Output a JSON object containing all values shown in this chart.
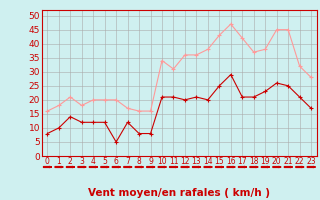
{
  "x": [
    0,
    1,
    2,
    3,
    4,
    5,
    6,
    7,
    8,
    9,
    10,
    11,
    12,
    13,
    14,
    15,
    16,
    17,
    18,
    19,
    20,
    21,
    22,
    23
  ],
  "wind_avg": [
    8,
    10,
    14,
    12,
    12,
    12,
    5,
    12,
    8,
    8,
    21,
    21,
    20,
    21,
    20,
    25,
    29,
    21,
    21,
    23,
    26,
    25,
    21,
    17
  ],
  "wind_gust": [
    16,
    18,
    21,
    18,
    20,
    20,
    20,
    17,
    16,
    16,
    34,
    31,
    36,
    36,
    38,
    43,
    47,
    42,
    37,
    38,
    45,
    45,
    32,
    28
  ],
  "avg_color": "#cc0000",
  "gust_color": "#ff9999",
  "bg_color": "#cff0f0",
  "grid_color": "#aaaaaa",
  "xlabel": "Vent moyen/en rafales ( km/h )",
  "xlabel_color": "#cc0000",
  "yticks": [
    0,
    5,
    10,
    15,
    20,
    25,
    30,
    35,
    40,
    45,
    50
  ],
  "ylim": [
    0,
    52
  ],
  "xlim": [
    -0.5,
    23.5
  ],
  "xtick_fontsize": 5.5,
  "ytick_fontsize": 6.5,
  "xlabel_fontsize": 7.5,
  "linewidth": 0.8,
  "markersize": 3
}
